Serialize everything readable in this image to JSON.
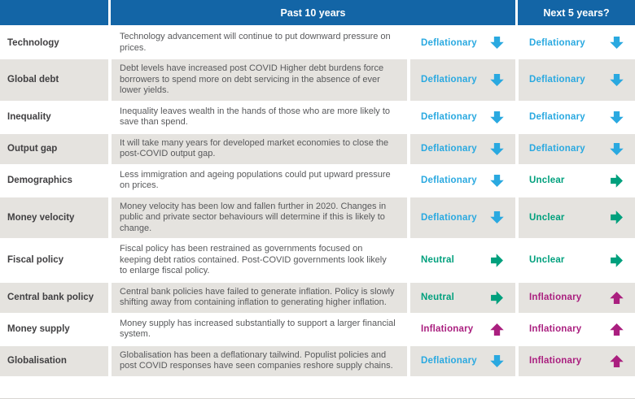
{
  "header": {
    "category_label": "",
    "past_label": "Past 10 years",
    "next_label": "Next 5 years?"
  },
  "colors": {
    "header_bg": "#1365A6",
    "alt_row_bg": "#E5E3DF",
    "category_text": "#414042",
    "description_text": "#58595B",
    "deflationary": "#2AA9E0",
    "neutral_unclear": "#00A07D",
    "inflationary": "#AA1F7F"
  },
  "status_styles": {
    "Deflationary": {
      "color": "#2AA9E0",
      "direction": "down",
      "icon": "arrow-down-icon"
    },
    "Neutral": {
      "color": "#00A07D",
      "direction": "right",
      "icon": "arrow-right-icon"
    },
    "Unclear": {
      "color": "#00A07D",
      "direction": "right",
      "icon": "arrow-right-icon"
    },
    "Inflationary": {
      "color": "#AA1F7F",
      "direction": "up",
      "icon": "arrow-up-icon"
    }
  },
  "rows": [
    {
      "category": "Technology",
      "description": "Technology advancement will continue to put downward pressure on prices.",
      "past": "Deflationary",
      "next": "Deflationary"
    },
    {
      "category": "Global debt",
      "description": "Debt levels have increased post COVID Higher debt burdens force borrowers to spend more on debt servicing in the absence of ever lower yields.",
      "past": "Deflationary",
      "next": "Deflationary"
    },
    {
      "category": "Inequality",
      "description": "Inequality leaves wealth in the hands of those who are more likely to save than spend.",
      "past": "Deflationary",
      "next": "Deflationary"
    },
    {
      "category": "Output gap",
      "description": "It will take many years for developed market economies to close the post-COVID output gap.",
      "past": "Deflationary",
      "next": "Deflationary"
    },
    {
      "category": "Demographics",
      "description": "Less immigration and ageing populations could put upward pressure on prices.",
      "past": "Deflationary",
      "next": "Unclear"
    },
    {
      "category": "Money velocity",
      "description": "Money velocity has been low and fallen further in 2020. Changes in public and private sector behaviours will determine if this is likely to change.",
      "past": "Deflationary",
      "next": "Unclear"
    },
    {
      "category": "Fiscal policy",
      "description": "Fiscal policy has been restrained as governments focused on keeping debt ratios contained. Post-COVID governments look likely to enlarge fiscal policy.",
      "past": "Neutral",
      "next": "Unclear"
    },
    {
      "category": "Central bank policy",
      "description": "Central bank policies have failed to generate inflation. Policy is slowly shifting away from containing inflation to generating higher inflation.",
      "past": "Neutral",
      "next": "Inflationary"
    },
    {
      "category": "Money supply",
      "description": "Money supply has increased substantially to support a larger financial system.",
      "past": "Inflationary",
      "next": "Inflationary"
    },
    {
      "category": "Globalisation",
      "description": "Globalisation has been a deflationary tailwind. Populist policies and post COVID responses have seen companies reshore supply chains.",
      "past": "Deflationary",
      "next": "Inflationary"
    }
  ]
}
